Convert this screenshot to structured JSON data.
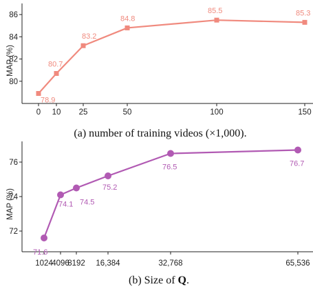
{
  "chart_data": [
    {
      "type": "line",
      "ylabel": "MAP (%)",
      "x": [
        0,
        10,
        25,
        50,
        100,
        150
      ],
      "x_tick_labels": [
        "0",
        "10",
        "25",
        "50",
        "100",
        "150"
      ],
      "ylim": [
        78,
        87
      ],
      "y_ticks": [
        80,
        82,
        84,
        86
      ],
      "series": [
        {
          "values": [
            78.9,
            80.7,
            83.2,
            84.8,
            85.5,
            85.3
          ],
          "labels": [
            "78.9",
            "80.7",
            "83.2",
            "84.8",
            "85.5",
            "85.3"
          ],
          "color": "#f08a7e",
          "marker": "square"
        }
      ],
      "caption": "(a) number of training videos (×1,000)."
    },
    {
      "type": "line",
      "ylabel": "MAP (%)",
      "x": [
        1024,
        4096,
        8192,
        16384,
        32768,
        65536
      ],
      "x_tick_labels": [
        "1024",
        "4096",
        "8192",
        "16,384",
        "32,768",
        "65,536"
      ],
      "ylim": [
        70.8,
        77.2
      ],
      "y_ticks": [
        72,
        74,
        76
      ],
      "series": [
        {
          "values": [
            71.6,
            74.1,
            74.5,
            75.2,
            76.5,
            76.7
          ],
          "labels": [
            "71.6",
            "74.1",
            "74.5",
            "75.2",
            "76.5",
            "76.7"
          ],
          "color": "#b15ab3",
          "marker": "circle"
        }
      ],
      "caption_prefix": "(b) Size of ",
      "caption_symbol": "Q",
      "caption_suffix": "."
    }
  ]
}
